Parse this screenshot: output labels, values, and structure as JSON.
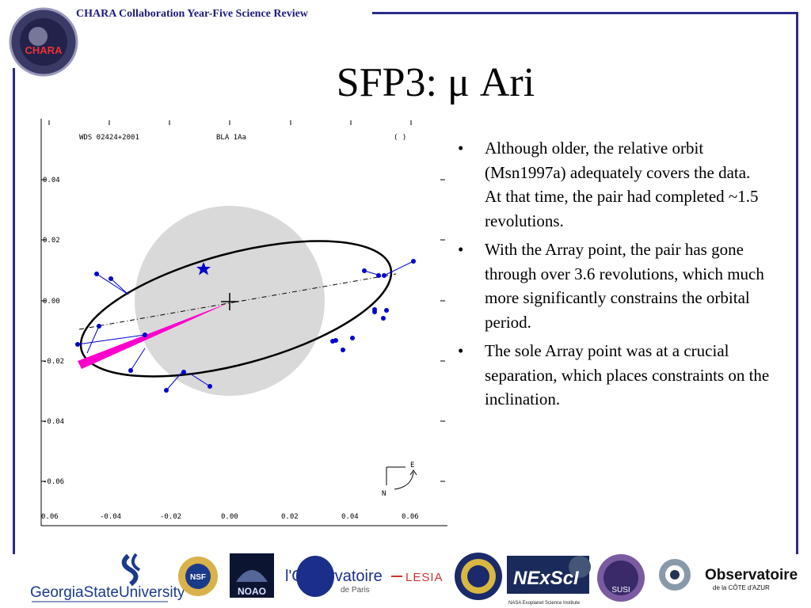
{
  "header": {
    "text": "CHARA Collaboration Year-Five Science Review",
    "logo_text": "CHARA"
  },
  "title": "SFP3: μ Ari",
  "bullets": [
    "Although older, the relative orbit (Msn1997a) adequately covers the data. At that time, the pair had completed ~1.5 revolutions.",
    "With the Array point, the pair has gone through over 3.6 revolutions, which much more significantly constrains the orbital period.",
    "The sole Array point was at a crucial separation, which places constraints on the inclination."
  ],
  "plot": {
    "label_wds": "WDS 02424+2001",
    "label_bla": "BLA   1Aa",
    "label_paren": "( )",
    "compass_e": "E",
    "compass_n": "N",
    "y_ticks": [
      "0.04",
      "0.02",
      "0.00",
      "-0.02",
      "-0.04",
      "-0.06"
    ],
    "x_ticks": [
      "0.06",
      "-0.04",
      "-0.02",
      "0.00",
      "0.02",
      "0.04",
      "0.06"
    ]
  },
  "footer": {
    "gsu": "GeorgiaStateUniversity",
    "nsf": "NSF",
    "noao": "NOAO",
    "obs_paris": "l'Observatoire",
    "obs_paris_sub": "de Paris",
    "lesia": "LESIA",
    "nexsci": "NExScI",
    "nexsci_sub": "NASA Exoplanet Science Institute",
    "susi": "SUSI",
    "oca": "Observatoire",
    "oca_sub": "de la CÔTE d'AZUR"
  },
  "colors": {
    "frame": "#2b2b8c",
    "header": "#1c1c7a",
    "points": "#0000cc",
    "wedge": "#ff00cc",
    "disk": "#d9d9d9"
  }
}
